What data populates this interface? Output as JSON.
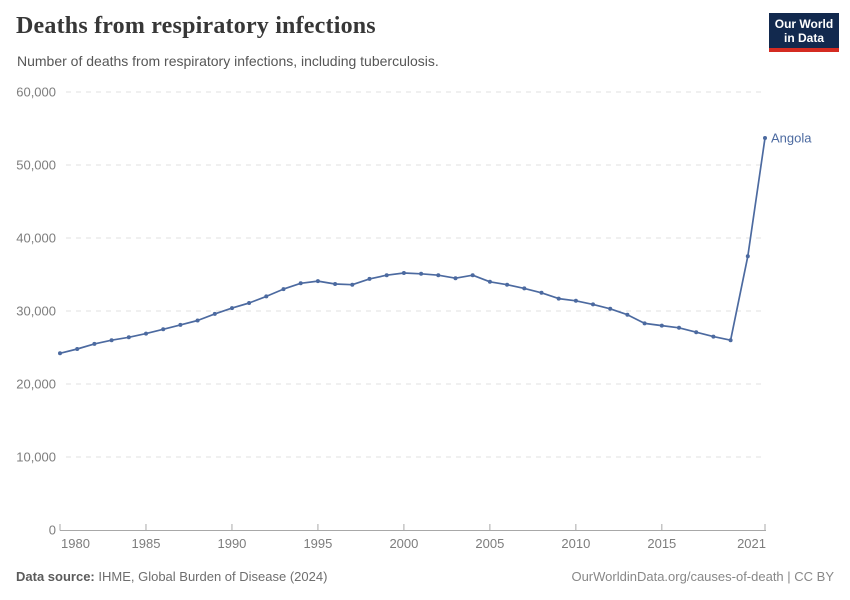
{
  "header": {
    "title": "Deaths from respiratory infections",
    "subtitle": "Number of deaths from respiratory infections, including tuberculosis."
  },
  "logo": {
    "line1": "Our World",
    "line2": "in Data",
    "bg_color": "#12294e",
    "accent_color": "#d42b21"
  },
  "chart_data": {
    "type": "line",
    "title": "Deaths from respiratory infections",
    "xlabel": "",
    "ylabel": "",
    "x": [
      1980,
      1981,
      1982,
      1983,
      1984,
      1985,
      1986,
      1987,
      1988,
      1989,
      1990,
      1991,
      1992,
      1993,
      1994,
      1995,
      1996,
      1997,
      1998,
      1999,
      2000,
      2001,
      2002,
      2003,
      2004,
      2005,
      2006,
      2007,
      2008,
      2009,
      2010,
      2011,
      2012,
      2013,
      2014,
      2015,
      2016,
      2017,
      2018,
      2019,
      2020,
      2021
    ],
    "series": [
      {
        "name": "Angola",
        "color": "#4c6aa0",
        "values": [
          24200,
          24800,
          25500,
          26000,
          26400,
          26900,
          27500,
          28100,
          28700,
          29600,
          30400,
          31100,
          32000,
          33000,
          33800,
          34100,
          33700,
          33600,
          34400,
          34900,
          35200,
          35100,
          34900,
          34500,
          34900,
          34000,
          33600,
          33100,
          32500,
          31700,
          31400,
          30900,
          30300,
          29500,
          28300,
          28000,
          27700,
          27100,
          26500,
          26000,
          37500,
          53700
        ]
      }
    ],
    "ylim": [
      0,
      60000
    ],
    "yticks": [
      0,
      10000,
      20000,
      30000,
      40000,
      50000,
      60000
    ],
    "ytick_labels": [
      "0",
      "10,000",
      "20,000",
      "30,000",
      "40,000",
      "50,000",
      "60,000"
    ],
    "xticks": [
      1980,
      1985,
      1990,
      1995,
      2000,
      2005,
      2010,
      2015,
      2021
    ],
    "xtick_labels": [
      "1980",
      "1985",
      "1990",
      "1995",
      "2000",
      "2005",
      "2010",
      "2015",
      "2021"
    ],
    "grid": "horizontal-dashed",
    "legend_position": "end-of-line-label",
    "entity_label": "Angola",
    "colors": {
      "line": "#4c6aa0",
      "gridline": "#e0e0e0",
      "axis": "#a8a8a8",
      "tick_label": "#7d7d7d"
    }
  },
  "footer": {
    "datasource_label": "Data source:",
    "datasource_value": " IHME, Global Burden of Disease (2024)",
    "credit": "OurWorldinData.org/causes-of-death | CC BY"
  }
}
